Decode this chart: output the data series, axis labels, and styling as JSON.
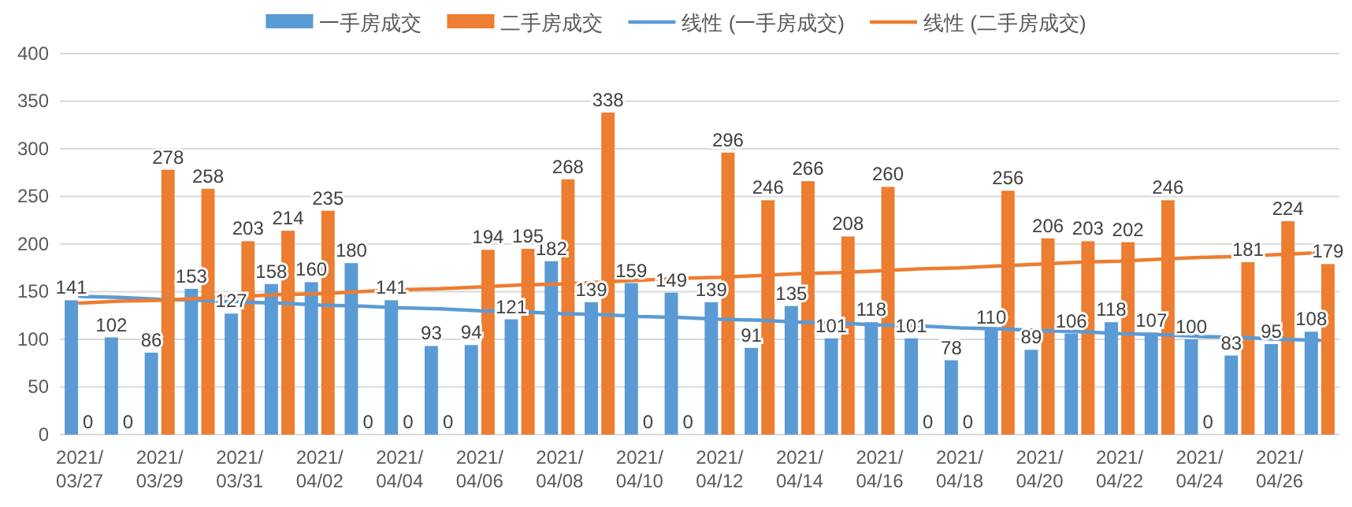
{
  "chart_data": {
    "type": "bar",
    "categories": [
      "2021/03/27",
      null,
      "2021/03/29",
      null,
      "2021/03/31",
      null,
      "2021/04/02",
      null,
      "2021/04/04",
      null,
      "2021/04/06",
      null,
      "2021/04/08",
      null,
      "2021/04/10",
      null,
      "2021/04/12",
      null,
      "2021/04/14",
      null,
      "2021/04/16",
      null,
      "2021/04/18",
      null,
      "2021/04/20",
      null,
      "2021/04/22",
      null,
      "2021/04/24",
      null,
      "2021/04/26",
      null
    ],
    "series": [
      {
        "name": "一手房成交",
        "color": "#5b9bd5",
        "values": [
          141,
          102,
          86,
          153,
          127,
          158,
          160,
          180,
          141,
          93,
          94,
          121,
          182,
          139,
          159,
          149,
          139,
          91,
          135,
          101,
          118,
          101,
          78,
          110,
          89,
          106,
          118,
          107,
          100,
          83,
          95,
          108
        ],
        "value_labels": [
          "141",
          "102",
          "86",
          "153",
          "127",
          "158",
          "160",
          "180",
          "141",
          "93",
          "94",
          "121",
          "182",
          "139",
          "159",
          "149",
          "139",
          "91",
          "135",
          "101",
          "118",
          "101",
          "78",
          "110",
          "89",
          "106",
          "118",
          "107",
          "100",
          "83",
          "95",
          "108"
        ]
      },
      {
        "name": "二手房成交",
        "color": "#ed7d31",
        "values": [
          0,
          0,
          278,
          258,
          203,
          214,
          235,
          0,
          0,
          0,
          194,
          195,
          268,
          338,
          0,
          0,
          296,
          246,
          266,
          208,
          260,
          0,
          0,
          256,
          206,
          203,
          202,
          246,
          0,
          181,
          224,
          179
        ],
        "value_labels": [
          "0",
          "0",
          "278",
          "258",
          "203",
          "214",
          "235",
          "0",
          "0",
          "0",
          "194",
          "195",
          "268",
          "338",
          "0",
          "0",
          "296",
          "246",
          "266",
          "208",
          "260",
          "0",
          "0",
          "256",
          "206",
          "203",
          "202",
          "246",
          "0",
          "181",
          "224",
          "179"
        ]
      },
      {
        "name": "线性 (一手房成交)",
        "type": "line",
        "color": "#5b9bd5",
        "values": [
          145,
          144,
          142,
          141,
          139,
          138,
          136,
          135,
          133,
          132,
          130,
          129,
          127,
          126,
          124,
          123,
          121,
          120,
          118,
          117,
          115,
          114,
          112,
          111,
          109,
          108,
          106,
          105,
          103,
          102,
          100,
          99
        ]
      },
      {
        "name": "线性 (二手房成交)",
        "type": "line",
        "color": "#ed7d31",
        "values": [
          138,
          140,
          141,
          143,
          145,
          147,
          148,
          150,
          152,
          153,
          155,
          157,
          158,
          160,
          162,
          164,
          165,
          167,
          169,
          170,
          172,
          174,
          175,
          177,
          179,
          181,
          182,
          184,
          186,
          187,
          189,
          191
        ]
      }
    ],
    "ylim": [
      0,
      400
    ],
    "yticks": [
      0,
      50,
      100,
      150,
      200,
      250,
      300,
      350,
      400
    ],
    "grid": "y",
    "legend": "top"
  }
}
